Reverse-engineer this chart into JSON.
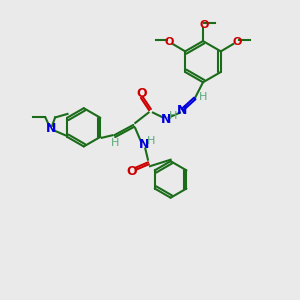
{
  "bg_color": "#eaeaea",
  "bond_color": "#1a6b1a",
  "N_color": "#0000dd",
  "O_color": "#cc0000",
  "H_color": "#5aaa7a",
  "lw": 1.5,
  "lw_double": 1.5,
  "fig_w": 3.0,
  "fig_h": 3.0,
  "dpi": 100,
  "xlim": [
    0,
    10
  ],
  "ylim": [
    0,
    10
  ]
}
